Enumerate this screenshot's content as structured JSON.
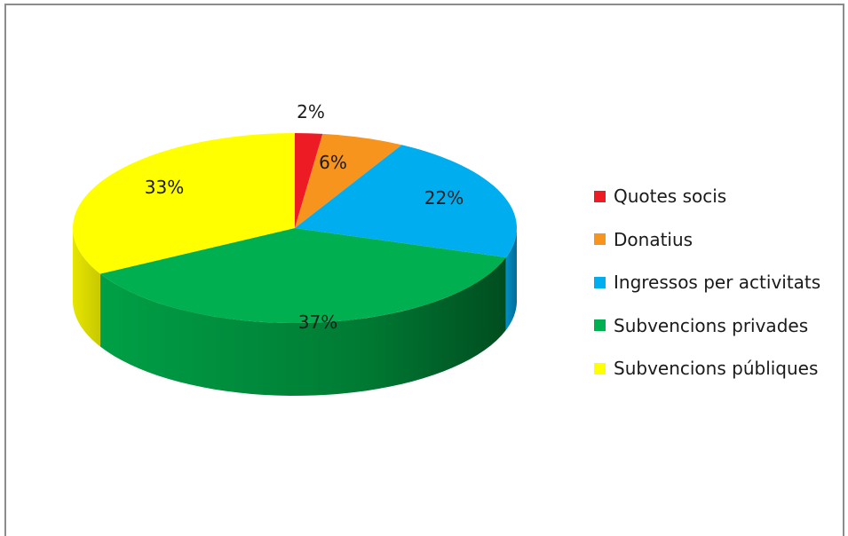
{
  "chart_data": {
    "type": "pie",
    "title": "",
    "three_d": true,
    "categories": [
      "Quotes socis",
      "Donatius",
      "Ingressos per activitats",
      "Subvencions privades",
      "Subvencions públiques"
    ],
    "values": [
      2,
      6,
      22,
      37,
      33
    ],
    "data_labels": [
      "2%",
      "6%",
      "22%",
      "37%",
      "33%"
    ],
    "colors": [
      "#ed1c24",
      "#f7941d",
      "#00aeef",
      "#00b050",
      "#ffff00"
    ],
    "legend_position": "right"
  }
}
